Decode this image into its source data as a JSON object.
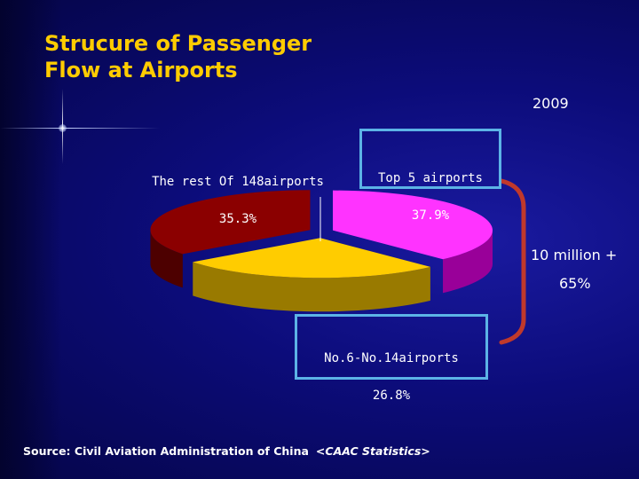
{
  "title": "Strucure of Passenger\nFlow at Airports",
  "year": "2009",
  "bracket_note": {
    "line1": "10 million +",
    "line2": "65%"
  },
  "source": "Source: Civil Aviation Administration of China",
  "source_cite": "<CAAC Statistics>",
  "chart_data": {
    "type": "pie",
    "title": "",
    "slices": [
      {
        "label": "Top 5 airports",
        "value": 37.9,
        "display": "37.9%",
        "color": "#ff33ff",
        "side_color": "#990099"
      },
      {
        "label": "No.6-No.14airports",
        "value": 26.8,
        "display": "26.8%",
        "color": "#ffcc00",
        "side_color": "#997a00"
      },
      {
        "label": "The rest Of 148airports",
        "value": 35.3,
        "display": "35.3%",
        "color": "#8b0000",
        "side_color": "#4d0000"
      }
    ]
  },
  "colors": {
    "title": "#ffcc00",
    "box_border": "#5cb3e6",
    "bracket": "#c0392b"
  }
}
